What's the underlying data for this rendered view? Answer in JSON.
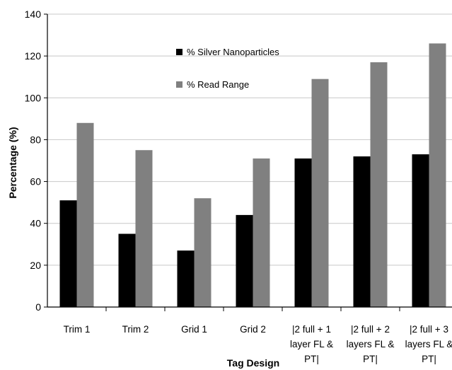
{
  "chart_data": {
    "type": "bar",
    "title": "",
    "xlabel": "Tag Design",
    "ylabel": "Percentage (%)",
    "ylim": [
      0,
      140
    ],
    "yticks": [
      0,
      20,
      40,
      60,
      80,
      100,
      120,
      140
    ],
    "grid": true,
    "legend_position": "top-center",
    "categories": [
      [
        "Trim 1"
      ],
      [
        "Trim 2"
      ],
      [
        "Grid 1"
      ],
      [
        "Grid 2"
      ],
      [
        "|2 full + 1",
        "layer FL &",
        "PT|"
      ],
      [
        "|2 full + 2",
        "layers  FL &",
        "PT|"
      ],
      [
        "|2 full + 3",
        "layers  FL &",
        "PT|"
      ]
    ],
    "series": [
      {
        "name": "% Silver Nanoparticles",
        "color": "#000000",
        "values": [
          51,
          35,
          27,
          44,
          71,
          72,
          73
        ]
      },
      {
        "name": "% Read Range",
        "color": "#808080",
        "values": [
          88,
          75,
          52,
          71,
          109,
          117,
          126
        ]
      }
    ]
  }
}
